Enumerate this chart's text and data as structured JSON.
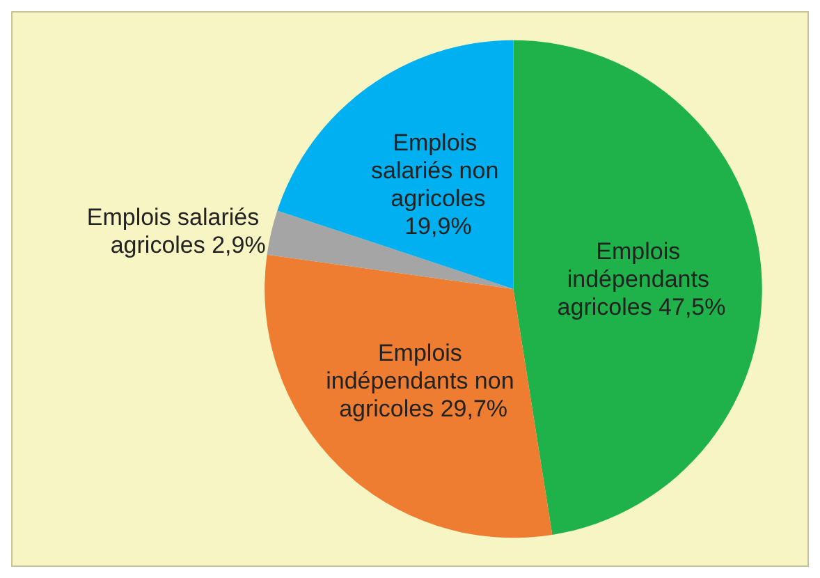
{
  "chart_data": {
    "type": "pie",
    "categories": [
      "Emplois indépendants agricoles",
      "Emplois indépendants non agricoles",
      "Emplois salariés agricoles",
      "Emplois salariés non agricoles"
    ],
    "values": [
      47.5,
      29.7,
      2.9,
      19.9
    ],
    "value_labels": [
      "47,5%",
      "29,7%",
      "2,9%",
      "19,9%"
    ],
    "colors": [
      "#1fb24a",
      "#ee7d31",
      "#a5a5a5",
      "#00b0f0"
    ],
    "legend": false
  }
}
